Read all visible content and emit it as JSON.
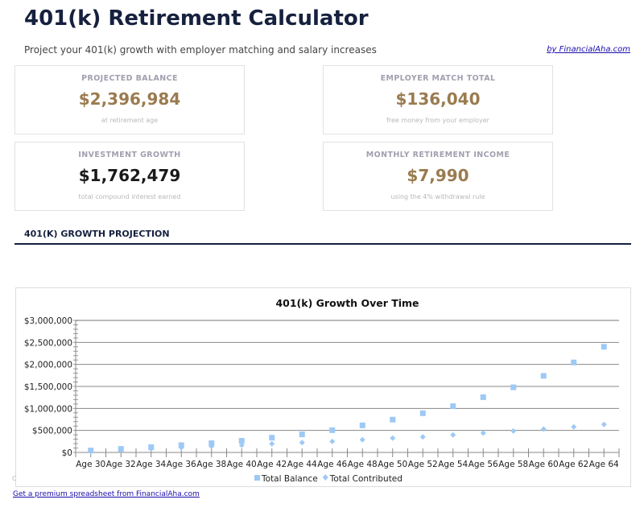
{
  "header": {
    "title": "401(k) Retirement Calculator",
    "subtitle": "Project your 401(k) growth with employer matching and salary increases",
    "byline": "by FinancialAha.com"
  },
  "cards": [
    {
      "label": "PROJECTED BALANCE",
      "value": "$2,396,984",
      "note": "at retirement age",
      "accent": "#9a7b4f"
    },
    {
      "label": "EMPLOYER MATCH TOTAL",
      "value": "$136,040",
      "note": "free money from your employer",
      "accent": "#9a7b4f"
    },
    {
      "label": "INVESTMENT GROWTH",
      "value": "$1,762,479",
      "note": "total compound interest earned",
      "accent": "#1a1a1a"
    },
    {
      "label": "MONTHLY RETIREMENT INCOME",
      "value": "$7,990",
      "note": "using the 4% withdrawal rule",
      "accent": "#9a7b4f"
    }
  ],
  "section": {
    "title": "401(K) GROWTH PROJECTION"
  },
  "chart_data": {
    "type": "scatter",
    "title": "401(k) Growth Over Time",
    "categories": [
      "Age 30",
      "Age 32",
      "Age 34",
      "Age 36",
      "Age 38",
      "Age 40",
      "Age 42",
      "Age 44",
      "Age 46",
      "Age 48",
      "Age 50",
      "Age 52",
      "Age 54",
      "Age 56",
      "Age 58",
      "Age 60",
      "Age 62",
      "Age 64"
    ],
    "yticks": [
      "$0",
      "$500,000",
      "$1,000,000",
      "$1,500,000",
      "$2,000,000",
      "$2,500,000",
      "$3,000,000"
    ],
    "ylim": [
      0,
      3000000
    ],
    "grid": true,
    "legend": "bottom",
    "series": [
      {
        "name": "Total Balance",
        "marker": "square",
        "color": "#9ec9f5",
        "values": [
          45000,
          80000,
          120000,
          165000,
          210000,
          265000,
          335000,
          410000,
          505000,
          615000,
          745000,
          890000,
          1050000,
          1255000,
          1480000,
          1740000,
          2045000,
          2400000
        ]
      },
      {
        "name": "Total Contributed",
        "marker": "diamond",
        "color": "#9ec9f5",
        "values": [
          20000,
          50000,
          80000,
          110000,
          140000,
          165000,
          196000,
          225000,
          250000,
          287000,
          324000,
          353000,
          397000,
          440000,
          488000,
          530000,
          580000,
          635000
        ]
      }
    ]
  },
  "footer": {
    "link": "Get a premium spreadsheet from FinancialAha.com",
    "stray": "C"
  }
}
